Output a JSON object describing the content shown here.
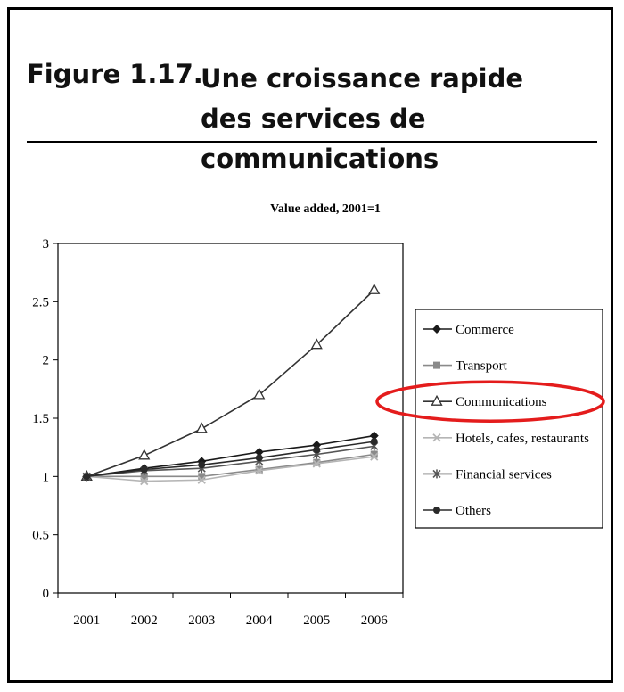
{
  "figure": {
    "number": "Figure 1.17.",
    "title": "Une croissance rapide des services de communications"
  },
  "chart_data": {
    "type": "line",
    "title": "Value added, 2001=1",
    "xlabel": "",
    "ylabel": "",
    "x": [
      "2001",
      "2002",
      "2003",
      "2004",
      "2005",
      "2006"
    ],
    "ylim": [
      0,
      3
    ],
    "yticks": [
      "0",
      "0.5",
      "1",
      "1.5",
      "2",
      "2.5",
      "3"
    ],
    "grid": false,
    "legend_position": "right",
    "highlight": "Communications",
    "series": [
      {
        "name": "Commerce",
        "marker": "diamond",
        "color": "#1a1a1a",
        "values": [
          1.0,
          1.07,
          1.13,
          1.21,
          1.27,
          1.35
        ]
      },
      {
        "name": "Transport",
        "marker": "square",
        "color": "#8a8a8a",
        "values": [
          1.0,
          1.0,
          1.0,
          1.06,
          1.12,
          1.19
        ]
      },
      {
        "name": "Communications",
        "marker": "triangle",
        "color": "#333333",
        "values": [
          1.0,
          1.18,
          1.41,
          1.7,
          2.13,
          2.6
        ]
      },
      {
        "name": "Hotels, cafes, restaurants",
        "marker": "x",
        "color": "#b5b5b5",
        "values": [
          1.0,
          0.96,
          0.97,
          1.05,
          1.11,
          1.17
        ]
      },
      {
        "name": "Financial services",
        "marker": "star",
        "color": "#555555",
        "values": [
          1.0,
          1.05,
          1.07,
          1.13,
          1.19,
          1.26
        ]
      },
      {
        "name": "Others",
        "marker": "circle",
        "color": "#2a2a2a",
        "values": [
          1.0,
          1.06,
          1.1,
          1.16,
          1.23,
          1.3
        ]
      }
    ]
  },
  "colors": {
    "highlight_ellipse": "#e41c1c"
  }
}
